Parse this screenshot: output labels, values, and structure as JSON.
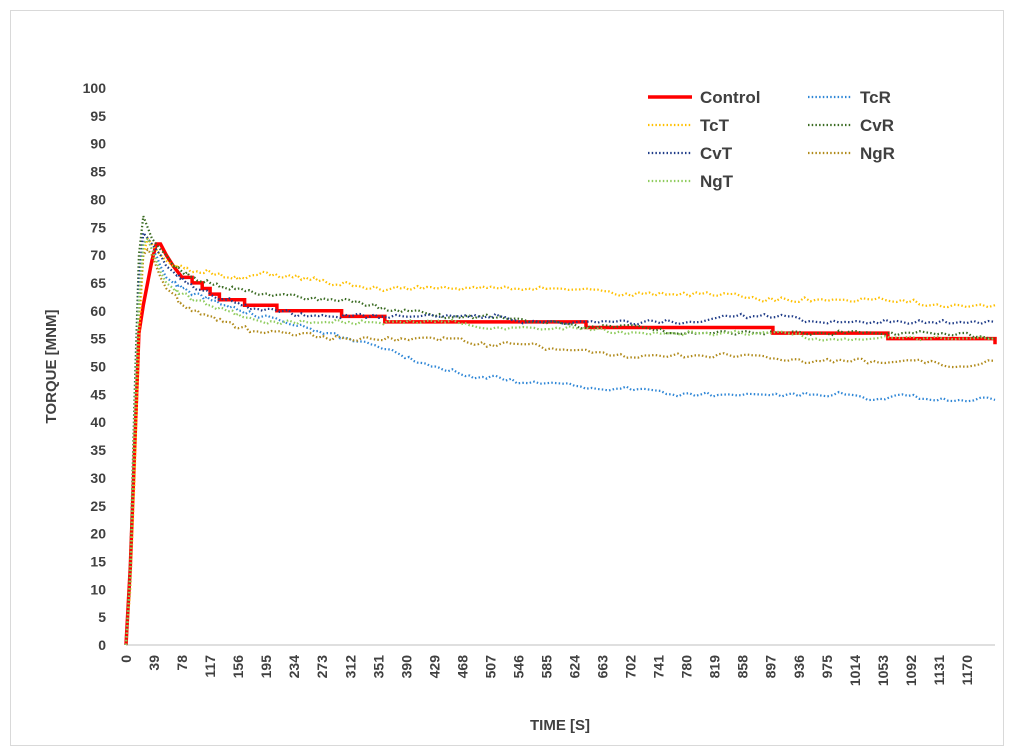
{
  "chart_data": {
    "type": "line",
    "title": "",
    "xlabel": "TIME  [S]",
    "ylabel": "TORQUE [MNM]",
    "xlim": [
      0,
      1209
    ],
    "ylim": [
      0,
      100
    ],
    "y_ticks": [
      0,
      5,
      10,
      15,
      20,
      25,
      30,
      35,
      40,
      45,
      50,
      55,
      60,
      65,
      70,
      75,
      80,
      85,
      90,
      95,
      100
    ],
    "x_ticks": [
      0,
      39,
      78,
      117,
      156,
      195,
      234,
      273,
      312,
      351,
      390,
      429,
      468,
      507,
      546,
      585,
      624,
      663,
      702,
      741,
      780,
      819,
      858,
      897,
      936,
      975,
      1014,
      1053,
      1092,
      1131,
      1170
    ],
    "grid": false,
    "legend_position": "top-right",
    "series": [
      {
        "name": "Control",
        "color": "#ff0000",
        "style": "solid",
        "x": [
          0,
          6,
          12,
          18,
          24,
          30,
          36,
          42,
          48,
          56,
          66,
          78,
          92,
          106,
          117,
          130,
          145,
          165,
          190,
          210,
          240,
          270,
          300,
          330,
          360,
          420,
          480,
          520,
          560,
          600,
          640,
          680,
          700,
          740,
          780,
          820,
          860,
          900,
          940,
          980,
          1000,
          1030,
          1060,
          1090,
          1130,
          1160,
          1190,
          1209
        ],
        "y": [
          0,
          14,
          35,
          56,
          61,
          65,
          69,
          72,
          72,
          70,
          68,
          66,
          65,
          64,
          63,
          62,
          62,
          61,
          61,
          60,
          60,
          60,
          59,
          59,
          58,
          58,
          58,
          58,
          58,
          58,
          57,
          57,
          57,
          57,
          57,
          57,
          57,
          56,
          56,
          56,
          56,
          56,
          55,
          55,
          55,
          55,
          55,
          54
        ]
      },
      {
        "name": "TcR",
        "color": "#2e86d6",
        "style": "dotted",
        "x": [
          0,
          6,
          12,
          18,
          24,
          30,
          36,
          42,
          48,
          56,
          66,
          78,
          95,
          117,
          140,
          160,
          190,
          220,
          250,
          280,
          310,
          340,
          370,
          400,
          430,
          460,
          490,
          520,
          560,
          600,
          640,
          680,
          720,
          760,
          800,
          840,
          880,
          920,
          960,
          1000,
          1040,
          1080,
          1120,
          1160,
          1209
        ],
        "y": [
          0,
          15,
          37,
          62,
          72,
          73,
          71,
          70,
          68,
          66,
          65,
          64,
          63,
          62,
          61,
          60,
          59,
          58,
          57,
          56,
          55,
          54,
          53,
          51,
          50,
          49,
          48,
          48,
          47,
          47,
          46,
          46,
          46,
          45,
          45,
          45,
          45,
          45,
          45,
          45,
          44,
          45,
          44,
          44,
          44
        ]
      },
      {
        "name": "TcT",
        "color": "#ffc000",
        "style": "dotted",
        "x": [
          0,
          6,
          12,
          18,
          24,
          30,
          36,
          42,
          48,
          56,
          66,
          78,
          95,
          117,
          140,
          160,
          190,
          220,
          250,
          280,
          310,
          340,
          370,
          400,
          430,
          460,
          490,
          520,
          560,
          600,
          640,
          680,
          720,
          760,
          800,
          840,
          880,
          920,
          960,
          1000,
          1040,
          1080,
          1120,
          1160,
          1209
        ],
        "y": [
          0,
          10,
          30,
          55,
          70,
          73,
          72,
          71,
          70,
          69,
          68,
          68,
          67,
          67,
          66,
          66,
          67,
          66,
          66,
          65,
          65,
          64,
          64,
          64,
          64,
          64,
          64,
          64,
          64,
          64,
          64,
          63,
          63,
          63,
          63,
          63,
          62,
          62,
          62,
          62,
          62,
          62,
          61,
          61,
          61
        ]
      },
      {
        "name": "CvR",
        "color": "#3a6b22",
        "style": "dotted",
        "x": [
          0,
          6,
          12,
          18,
          24,
          30,
          36,
          42,
          48,
          56,
          66,
          78,
          95,
          117,
          140,
          160,
          190,
          220,
          250,
          280,
          310,
          340,
          370,
          400,
          430,
          460,
          490,
          520,
          560,
          600,
          640,
          680,
          720,
          760,
          800,
          840,
          880,
          920,
          960,
          1000,
          1040,
          1080,
          1120,
          1160,
          1209
        ],
        "y": [
          0,
          15,
          45,
          70,
          77,
          75,
          73,
          72,
          71,
          70,
          68,
          67,
          66,
          65,
          64,
          64,
          63,
          63,
          62,
          62,
          62,
          61,
          60,
          60,
          59,
          59,
          59,
          59,
          58,
          58,
          57,
          57,
          57,
          56,
          56,
          56,
          56,
          56,
          56,
          56,
          56,
          56,
          56,
          56,
          55
        ]
      },
      {
        "name": "CvT",
        "color": "#1f3c88",
        "style": "dotted",
        "x": [
          0,
          6,
          12,
          18,
          24,
          30,
          36,
          42,
          48,
          56,
          66,
          78,
          95,
          117,
          140,
          160,
          190,
          220,
          250,
          280,
          310,
          340,
          370,
          400,
          430,
          460,
          490,
          520,
          560,
          600,
          640,
          680,
          720,
          760,
          800,
          840,
          880,
          920,
          960,
          1000,
          1040,
          1080,
          1120,
          1160,
          1209
        ],
        "y": [
          0,
          12,
          40,
          65,
          74,
          73,
          72,
          71,
          70,
          68,
          67,
          66,
          64,
          63,
          62,
          61,
          60,
          60,
          59,
          59,
          59,
          59,
          59,
          59,
          59,
          59,
          59,
          59,
          58,
          58,
          58,
          58,
          58,
          58,
          58,
          59,
          59,
          59,
          58,
          58,
          58,
          58,
          58,
          58,
          58
        ]
      },
      {
        "name": "NgR",
        "color": "#b08a1a",
        "style": "dotted",
        "x": [
          0,
          6,
          12,
          18,
          24,
          30,
          36,
          42,
          48,
          56,
          66,
          78,
          95,
          117,
          140,
          160,
          190,
          220,
          250,
          280,
          310,
          340,
          370,
          400,
          430,
          460,
          490,
          520,
          560,
          600,
          640,
          680,
          720,
          760,
          800,
          840,
          880,
          920,
          960,
          1000,
          1040,
          1080,
          1120,
          1160,
          1209
        ],
        "y": [
          0,
          15,
          40,
          60,
          70,
          71,
          70,
          68,
          66,
          64,
          63,
          61,
          60,
          59,
          58,
          57,
          56,
          56,
          56,
          55,
          55,
          55,
          55,
          55,
          55,
          55,
          54,
          54,
          54,
          53,
          53,
          52,
          52,
          52,
          52,
          52,
          52,
          51,
          51,
          51,
          51,
          51,
          51,
          50,
          51
        ]
      },
      {
        "name": "NgT",
        "color": "#8fcc5e",
        "style": "dotted",
        "x": [
          0,
          6,
          12,
          18,
          24,
          30,
          36,
          42,
          48,
          56,
          66,
          78,
          95,
          117,
          140,
          160,
          190,
          220,
          250,
          280,
          310,
          340,
          370,
          400,
          430,
          460,
          490,
          520,
          560,
          600,
          640,
          680,
          720,
          760,
          800,
          840,
          880,
          920,
          960,
          1000,
          1040,
          1080,
          1120,
          1160,
          1209
        ],
        "y": [
          0,
          12,
          40,
          62,
          72,
          73,
          71,
          69,
          67,
          65,
          64,
          63,
          62,
          61,
          60,
          59,
          58,
          58,
          58,
          58,
          58,
          58,
          58,
          58,
          58,
          58,
          57,
          57,
          57,
          57,
          57,
          56,
          56,
          56,
          56,
          56,
          56,
          56,
          55,
          55,
          55,
          55,
          55,
          55,
          55
        ]
      }
    ]
  }
}
